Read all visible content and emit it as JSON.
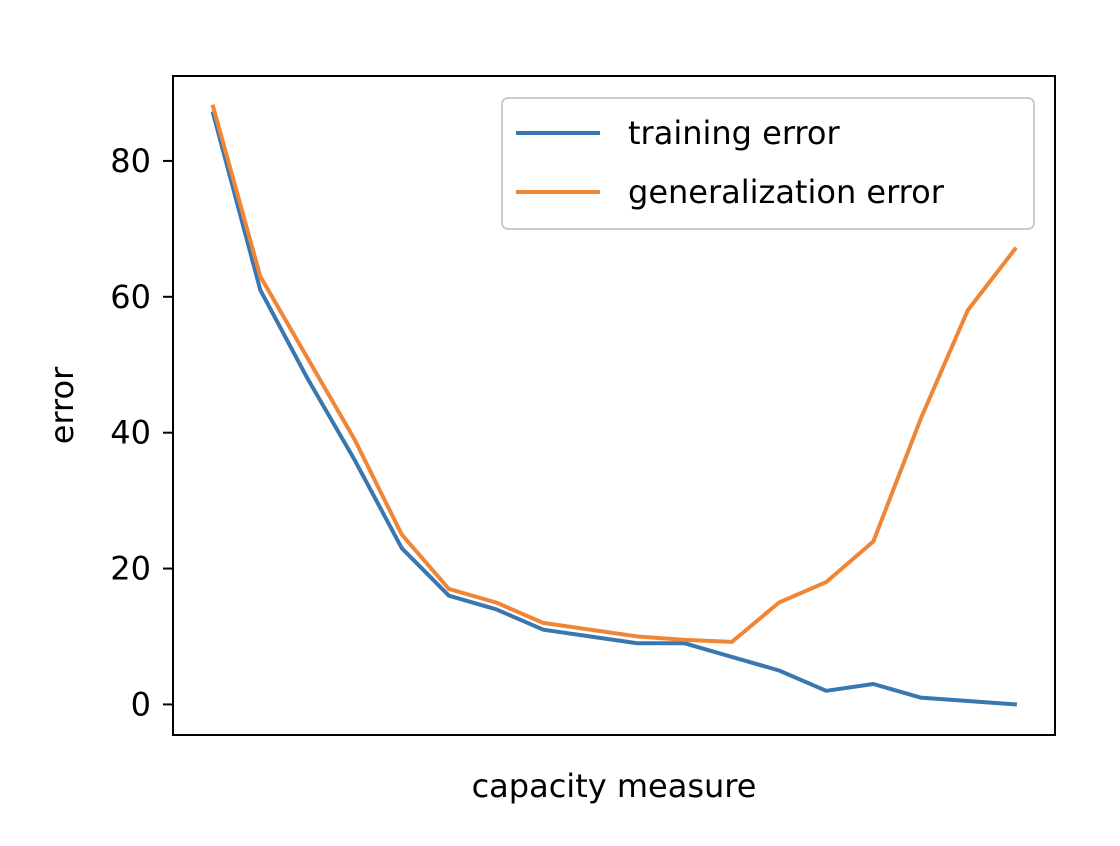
{
  "chart_data": {
    "type": "line",
    "title": "",
    "xlabel": "capacity measure",
    "ylabel": "error",
    "x": [
      0,
      1,
      2,
      3,
      4,
      5,
      6,
      7,
      8,
      9,
      10,
      11,
      12,
      13,
      14,
      15,
      16,
      17
    ],
    "ylim": [
      -4.5,
      92.5
    ],
    "yticks": [
      "0",
      "20",
      "40",
      "60",
      "80"
    ],
    "ytick_values": [
      0,
      20,
      40,
      60,
      80
    ],
    "grid": false,
    "legend_position": "top-right",
    "series": [
      {
        "name": "training error",
        "color": "#3a76af",
        "values": [
          87,
          61,
          48,
          36,
          23,
          16,
          14,
          11,
          10,
          9,
          9,
          7,
          5,
          2,
          3,
          1,
          0.5,
          0
        ]
      },
      {
        "name": "generalization error",
        "color": "#ef8636",
        "values": [
          88,
          63,
          51,
          39,
          25,
          17,
          15,
          12,
          11,
          10,
          9.5,
          9.2,
          15,
          18,
          24,
          42,
          58,
          67
        ]
      }
    ]
  }
}
